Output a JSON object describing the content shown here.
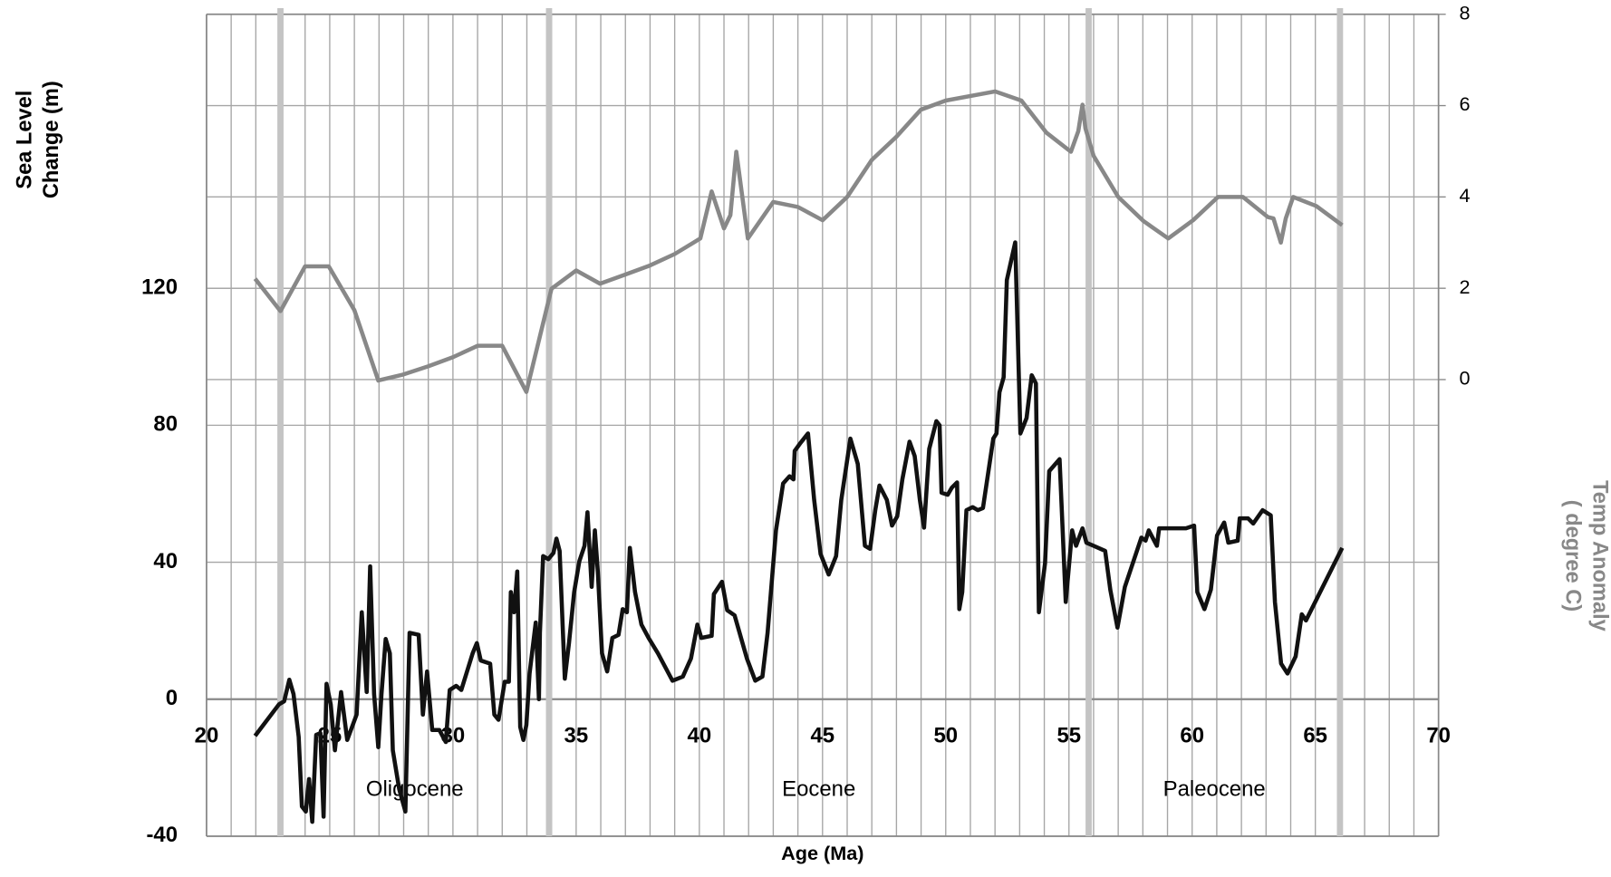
{
  "chart_data": {
    "type": "line",
    "xlabel": "Age (Ma)",
    "ylabel": [
      "Sea  Level",
      "Change (m)"
    ],
    "y2label": [
      "Temp Anomaly",
      "( degree C)"
    ],
    "xlim": [
      20,
      70
    ],
    "xticks": [
      20,
      25,
      30,
      35,
      40,
      45,
      50,
      55,
      60,
      65,
      70
    ],
    "x_minor_step": 1,
    "ylim": [
      -40,
      200
    ],
    "yticks": [
      -40,
      0,
      40,
      80,
      120
    ],
    "y2lim": [
      -10,
      8
    ],
    "y2ticks": [
      0,
      2,
      4,
      6,
      8
    ],
    "grid": true,
    "boundaries": [
      23,
      33.9,
      55.8,
      66
    ],
    "boundary_color": "#c4c4c4",
    "epochs": [
      {
        "name": "Oligocene",
        "start": 23,
        "end": 33.9
      },
      {
        "name": "Eocene",
        "start": 33.9,
        "end": 55.8
      },
      {
        "name": "Paleocene",
        "start": 55.8,
        "end": 66
      }
    ],
    "y2label_color": "#888888",
    "series": [
      {
        "color": "#888888",
        "axis": "y2",
        "x": [
          21.97,
          23.0,
          24.0,
          24.96,
          26.0,
          26.97,
          27.98,
          28.99,
          30.0,
          31.0,
          32.0,
          32.98,
          34.0,
          35.0,
          35.97,
          37.0,
          38.0,
          39.0,
          40.04,
          40.5,
          41.0,
          41.26,
          41.5,
          41.97,
          43.0,
          44.0,
          45.0,
          46.0,
          47.0,
          48.0,
          48.99,
          50.0,
          52.0,
          53.07,
          54.08,
          55.08,
          55.38,
          55.55,
          55.67,
          56.0,
          57.0,
          58.03,
          59.03,
          60.04,
          61.05,
          62.06,
          63.07,
          63.3,
          63.6,
          63.8,
          64.1,
          65.04,
          66.09
        ],
        "values": [
          2.21,
          1.5,
          2.48,
          2.48,
          1.52,
          -0.02,
          0.11,
          0.29,
          0.49,
          0.74,
          0.74,
          -0.27,
          1.99,
          2.39,
          2.1,
          2.3,
          2.5,
          2.75,
          3.09,
          4.12,
          3.31,
          3.6,
          4.99,
          3.09,
          3.89,
          3.78,
          3.49,
          4.0,
          4.81,
          5.32,
          5.91,
          6.11,
          6.31,
          6.11,
          5.41,
          4.99,
          5.44,
          6.02,
          5.5,
          4.9,
          4.0,
          3.47,
          3.09,
          3.49,
          4.0,
          4.0,
          3.56,
          3.53,
          3.0,
          3.53,
          4.0,
          3.8,
          3.38
        ]
      },
      {
        "color": "#111111",
        "axis": "y",
        "x": [
          21.97,
          22.94,
          23.15,
          23.36,
          23.53,
          23.74,
          23.87,
          24.03,
          24.16,
          24.29,
          24.45,
          24.62,
          24.75,
          24.87,
          25.04,
          25.21,
          25.46,
          25.71,
          26.09,
          26.3,
          26.5,
          26.64,
          26.8,
          26.97,
          27.1,
          27.27,
          27.44,
          27.56,
          27.82,
          28.07,
          28.24,
          28.61,
          28.78,
          28.95,
          29.16,
          29.45,
          29.71,
          29.87,
          30.13,
          30.34,
          30.8,
          30.97,
          31.13,
          31.51,
          31.68,
          31.85,
          32.1,
          32.27,
          32.35,
          32.48,
          32.61,
          32.73,
          32.86,
          32.98,
          33.11,
          33.36,
          33.49,
          33.53,
          33.66,
          33.87,
          34.08,
          34.2,
          34.33,
          34.54,
          34.71,
          34.92,
          35.13,
          35.34,
          35.46,
          35.63,
          35.76,
          35.88,
          36.05,
          36.26,
          36.47,
          36.72,
          36.89,
          37.06,
          37.18,
          37.39,
          37.65,
          37.94,
          38.32,
          38.91,
          39.33,
          39.66,
          39.92,
          40.08,
          40.5,
          40.59,
          40.92,
          41.13,
          41.43,
          41.93,
          42.27,
          42.56,
          42.77,
          43.11,
          43.4,
          43.66,
          43.82,
          43.87,
          44.08,
          44.41,
          44.66,
          44.92,
          45.25,
          45.55,
          45.76,
          46.13,
          46.43,
          46.72,
          46.93,
          47.14,
          47.31,
          47.61,
          47.82,
          48.03,
          48.24,
          48.53,
          48.74,
          48.95,
          49.12,
          49.33,
          49.62,
          49.75,
          49.83,
          50.08,
          50.25,
          50.46,
          50.55,
          50.67,
          50.84,
          51.09,
          51.3,
          51.51,
          51.93,
          52.06,
          52.18,
          52.35,
          52.48,
          52.82,
          53.03,
          53.28,
          53.49,
          53.66,
          53.78,
          54.03,
          54.2,
          54.62,
          54.71,
          54.87,
          55.13,
          55.29,
          55.55,
          55.71,
          56.0,
          56.47,
          56.68,
          56.97,
          57.27,
          57.94,
          58.11,
          58.24,
          58.57,
          58.66,
          59.75,
          60.08,
          60.21,
          60.5,
          60.76,
          61.01,
          61.3,
          61.47,
          61.85,
          61.93,
          62.27,
          62.48,
          62.86,
          63.19,
          63.36,
          63.61,
          63.87,
          64.2,
          64.45,
          64.62,
          66.09
        ],
        "values": [
          -10.7,
          -1.5,
          -0.6,
          5.7,
          1.5,
          -11,
          -31.3,
          -32.8,
          -23.3,
          -35.8,
          -10.4,
          -9.9,
          -34.3,
          4.5,
          -1.5,
          -14.9,
          2.1,
          -11.9,
          -4.5,
          25.4,
          2.1,
          38.8,
          1.5,
          -14,
          1.5,
          17.6,
          13.4,
          -14.9,
          -26.3,
          -32.8,
          19.4,
          18.8,
          -4.5,
          8.1,
          -9,
          -9,
          -12.5,
          2.7,
          3.9,
          2.7,
          13.4,
          16.4,
          11.3,
          10.4,
          -4.5,
          -6,
          5.1,
          5.1,
          31.3,
          25.4,
          37.3,
          -8.1,
          -11.9,
          -7.5,
          7.5,
          22.4,
          0,
          19.4,
          41.8,
          40.9,
          42.7,
          46.9,
          43.3,
          6,
          16.4,
          31.3,
          40.3,
          44.8,
          54.6,
          32.8,
          49.3,
          37.3,
          13.4,
          8.1,
          17.9,
          18.8,
          26.3,
          25.4,
          44.2,
          31.3,
          21.8,
          17.9,
          13.4,
          5.4,
          6.6,
          11.9,
          21.8,
          17.9,
          18.5,
          30.7,
          34.3,
          26,
          24.5,
          11.9,
          5.4,
          6.6,
          19.4,
          49.3,
          63,
          65.1,
          64.2,
          72.5,
          74.6,
          77.6,
          58.2,
          42.4,
          36.4,
          41.8,
          58.2,
          76.1,
          68.7,
          44.8,
          43.9,
          55.2,
          62.4,
          58.2,
          50.7,
          53.4,
          64.2,
          75.2,
          71,
          58.2,
          50.1,
          73.1,
          81.2,
          80,
          60.3,
          59.7,
          61.8,
          63.3,
          26.3,
          31.3,
          55.2,
          56.1,
          55.2,
          55.8,
          76.1,
          77.6,
          89.6,
          94,
          122.4,
          133.4,
          77.6,
          82.1,
          94.6,
          92.2,
          25.4,
          39.7,
          66.6,
          70.1,
          55.2,
          28.4,
          49.3,
          44.8,
          49.9,
          45.7,
          44.8,
          43.3,
          31.9,
          20.9,
          32.8,
          47.2,
          46.3,
          49.3,
          44.8,
          49.9,
          49.9,
          50.7,
          31.3,
          26.3,
          32,
          47.8,
          51.6,
          45.7,
          46.3,
          52.8,
          52.8,
          51.3,
          55.2,
          53.7,
          28.4,
          10.4,
          7.5,
          12.5,
          24.8,
          23,
          44.2
        ]
      }
    ]
  }
}
